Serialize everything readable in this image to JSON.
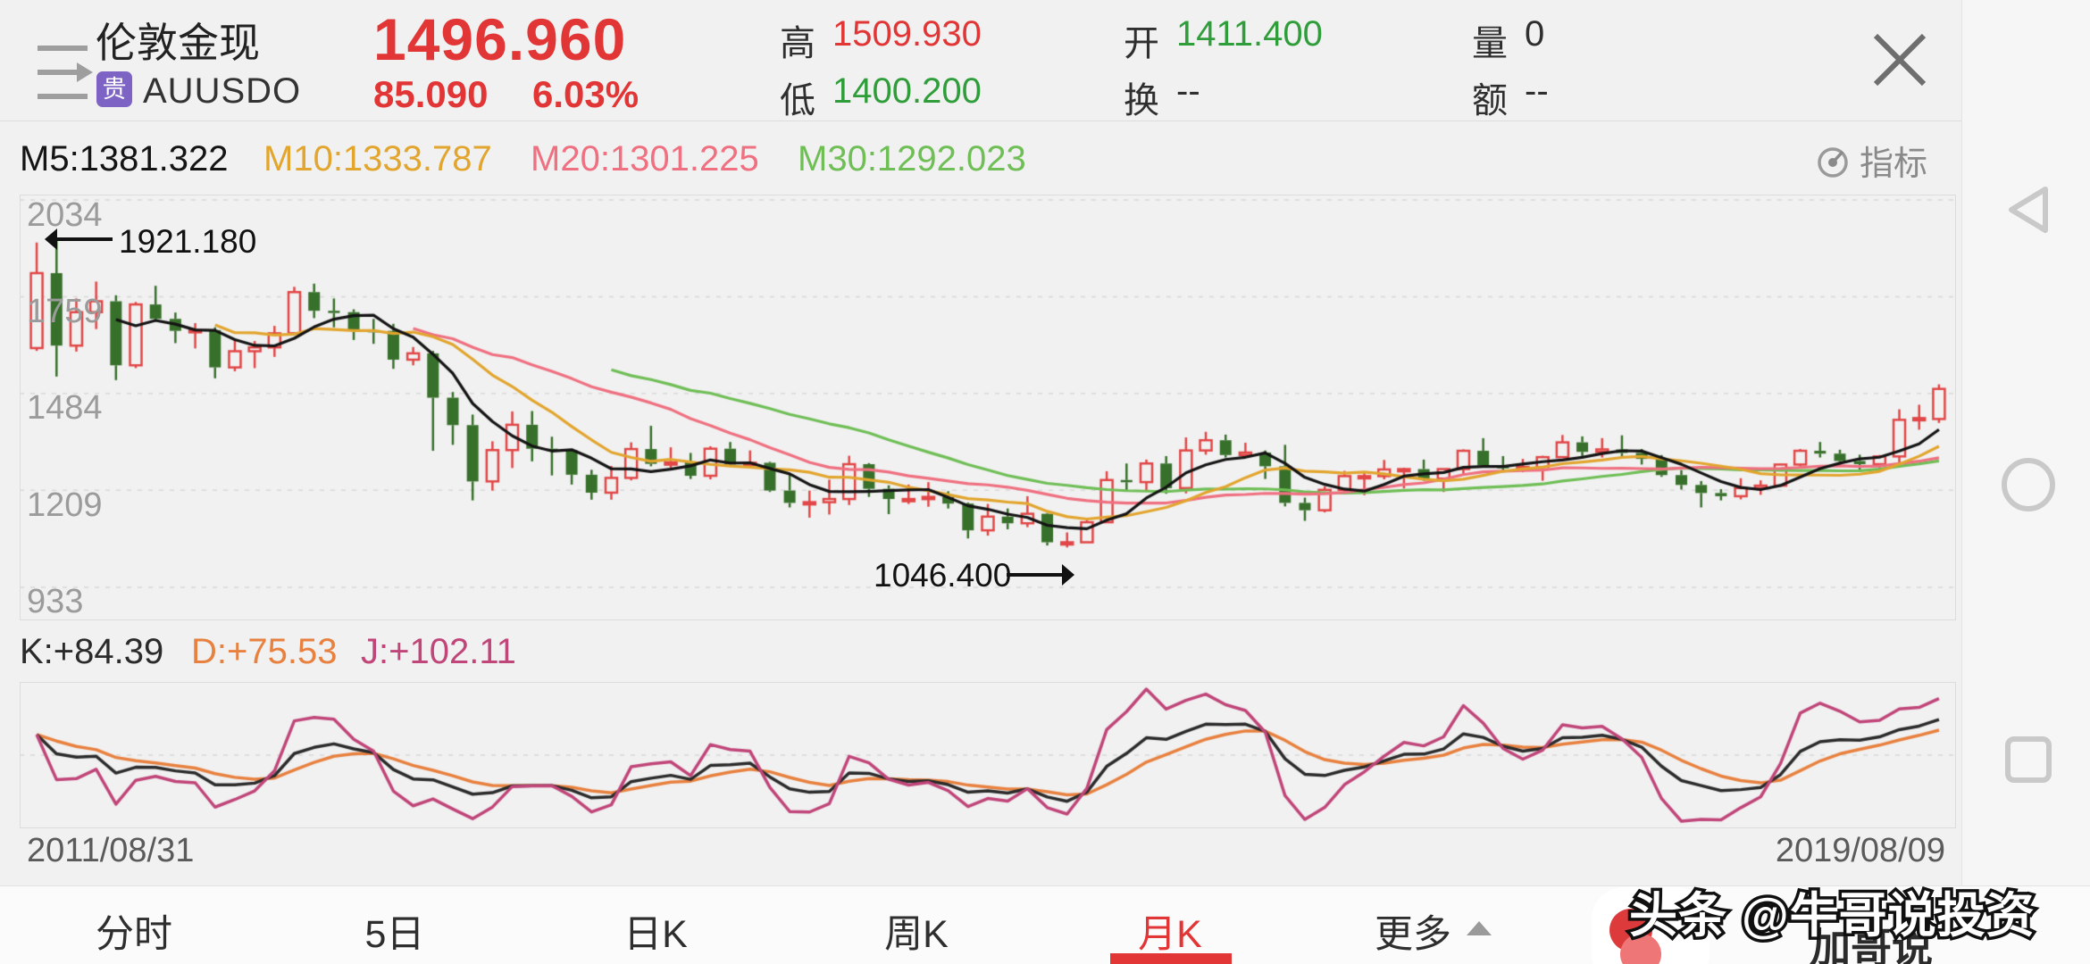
{
  "header": {
    "title": "伦敦金现",
    "market_badge": "贵",
    "symbol": "AUUSDO",
    "price": "1496.960",
    "change": "85.090",
    "change_pct": "6.03%",
    "stats": [
      {
        "label": "高",
        "value": "1509.930",
        "color": "red"
      },
      {
        "label": "低",
        "value": "1400.200",
        "color": "green"
      },
      {
        "label": "开",
        "value": "1411.400",
        "color": "green"
      },
      {
        "label": "换",
        "value": "--",
        "color": "dark"
      },
      {
        "label": "量",
        "value": "0",
        "color": "dark"
      },
      {
        "label": "额",
        "value": "--",
        "color": "dark"
      }
    ],
    "close_icon": "close"
  },
  "ma_bar": {
    "m5": "M5:1381.322",
    "m10": "M10:1333.787",
    "m20": "M20:1301.225",
    "m30": "M30:1292.023",
    "indicator_label": "指标"
  },
  "kdj_bar": {
    "k": "K:+84.39",
    "d": "D:+75.53",
    "j": "J:+102.11"
  },
  "tabs": [
    {
      "label": "分时",
      "active": false
    },
    {
      "label": "5日",
      "active": false
    },
    {
      "label": "日K",
      "active": false
    },
    {
      "label": "周K",
      "active": false
    },
    {
      "label": "月K",
      "active": true
    },
    {
      "label": "更多",
      "active": false
    }
  ],
  "watermark": {
    "text": "头条 @牛哥说投资",
    "partial_text": "加哥说"
  },
  "colors": {
    "up_red": "#e24646",
    "down_green": "#37702a",
    "price_red": "#e23535",
    "green_value": "#2f9e3a",
    "badge_purple": "#7d63c3",
    "ma5": "#141414",
    "ma10": "#e2a52e",
    "ma20": "#ef7080",
    "ma30": "#6fbe56",
    "kdj_k": "#2b2b2b",
    "kdj_d": "#e8813f",
    "kdj_j": "#c04579"
  },
  "chart_data": {
    "type": "candlestick",
    "title": "伦敦金现 AUUSDO 月K",
    "y_ticks": [
      2034,
      1759,
      1484,
      1209,
      933
    ],
    "y_range": [
      933,
      2034
    ],
    "x_start_label": "2011/08/31",
    "x_end_label": "2019/08/09",
    "start_month": "2011-08",
    "annotations": [
      {
        "text": "1921.180",
        "type": "high",
        "direction": "left"
      },
      {
        "text": "1046.400",
        "type": "low",
        "direction": "right"
      }
    ],
    "ma_overlays": [
      {
        "name": "M5",
        "period": 5,
        "color": "#141414",
        "last_value": 1381.322
      },
      {
        "name": "M10",
        "period": 10,
        "color": "#e2a52e",
        "last_value": 1333.787
      },
      {
        "name": "M20",
        "period": 20,
        "color": "#ef7080",
        "last_value": 1301.225
      },
      {
        "name": "M30",
        "period": 30,
        "color": "#6fbe56",
        "last_value": 1292.023
      }
    ],
    "sub_indicator": {
      "name": "KDJ",
      "period": 9,
      "k": 84.39,
      "d": 75.53,
      "j": 102.11
    },
    "ohlc": [
      [
        1613,
        1913,
        1605,
        1826
      ],
      [
        1826,
        1921.18,
        1532,
        1620
      ],
      [
        1620,
        1754,
        1603,
        1715
      ],
      [
        1715,
        1802,
        1667,
        1746
      ],
      [
        1746,
        1763,
        1522,
        1564
      ],
      [
        1564,
        1744,
        1556,
        1737
      ],
      [
        1737,
        1790,
        1688,
        1696
      ],
      [
        1696,
        1714,
        1627,
        1662
      ],
      [
        1662,
        1684,
        1612,
        1664
      ],
      [
        1664,
        1672,
        1527,
        1558
      ],
      [
        1558,
        1640,
        1547,
        1604
      ],
      [
        1604,
        1633,
        1556,
        1615
      ],
      [
        1615,
        1676,
        1588,
        1655
      ],
      [
        1655,
        1787,
        1651,
        1772
      ],
      [
        1772,
        1796,
        1698,
        1719
      ],
      [
        1719,
        1754,
        1672,
        1715
      ],
      [
        1715,
        1723,
        1636,
        1664
      ],
      [
        1664,
        1696,
        1625,
        1662
      ],
      [
        1662,
        1682,
        1554,
        1580
      ],
      [
        1580,
        1616,
        1564,
        1598
      ],
      [
        1598,
        1605,
        1321,
        1472
      ],
      [
        1472,
        1488,
        1338,
        1394
      ],
      [
        1394,
        1424,
        1180,
        1234
      ],
      [
        1234,
        1348,
        1208,
        1323
      ],
      [
        1323,
        1433,
        1272,
        1395
      ],
      [
        1395,
        1434,
        1291,
        1327
      ],
      [
        1327,
        1361,
        1251,
        1323
      ],
      [
        1323,
        1326,
        1225,
        1253
      ],
      [
        1253,
        1267,
        1182,
        1202
      ],
      [
        1202,
        1278,
        1182,
        1244
      ],
      [
        1244,
        1345,
        1237,
        1326
      ],
      [
        1326,
        1392,
        1277,
        1284
      ],
      [
        1284,
        1331,
        1268,
        1288
      ],
      [
        1288,
        1315,
        1241,
        1250
      ],
      [
        1250,
        1334,
        1240,
        1327
      ],
      [
        1327,
        1346,
        1281,
        1282
      ],
      [
        1282,
        1322,
        1273,
        1287
      ],
      [
        1287,
        1290,
        1204,
        1208
      ],
      [
        1208,
        1256,
        1160,
        1173
      ],
      [
        1173,
        1208,
        1131,
        1175
      ],
      [
        1175,
        1239,
        1140,
        1184
      ],
      [
        1184,
        1307,
        1167,
        1283
      ],
      [
        1283,
        1286,
        1190,
        1213
      ],
      [
        1213,
        1223,
        1141,
        1184
      ],
      [
        1184,
        1225,
        1170,
        1184
      ],
      [
        1184,
        1232,
        1162,
        1190
      ],
      [
        1190,
        1206,
        1157,
        1171
      ],
      [
        1171,
        1174,
        1072,
        1095
      ],
      [
        1095,
        1170,
        1080,
        1134
      ],
      [
        1134,
        1157,
        1098,
        1115
      ],
      [
        1115,
        1192,
        1104,
        1142
      ],
      [
        1142,
        1144,
        1052,
        1061
      ],
      [
        1061,
        1089,
        1046.4,
        1061
      ],
      [
        1061,
        1128,
        1061,
        1118
      ],
      [
        1118,
        1263,
        1117,
        1238
      ],
      [
        1238,
        1285,
        1208,
        1232
      ],
      [
        1232,
        1296,
        1208,
        1285
      ],
      [
        1285,
        1306,
        1199,
        1215
      ],
      [
        1215,
        1359,
        1200,
        1322
      ],
      [
        1322,
        1375,
        1310,
        1351
      ],
      [
        1351,
        1367,
        1302,
        1309
      ],
      [
        1309,
        1344,
        1302,
        1316
      ],
      [
        1316,
        1322,
        1241,
        1277
      ],
      [
        1277,
        1338,
        1163,
        1173
      ],
      [
        1173,
        1188,
        1122,
        1152
      ],
      [
        1152,
        1220,
        1146,
        1210
      ],
      [
        1210,
        1264,
        1205,
        1249
      ],
      [
        1249,
        1261,
        1195,
        1249
      ],
      [
        1249,
        1295,
        1240,
        1268
      ],
      [
        1268,
        1273,
        1214,
        1269
      ],
      [
        1269,
        1296,
        1236,
        1242
      ],
      [
        1242,
        1270,
        1204,
        1269
      ],
      [
        1269,
        1325,
        1251,
        1321
      ],
      [
        1321,
        1357,
        1278,
        1280
      ],
      [
        1280,
        1306,
        1261,
        1271
      ],
      [
        1271,
        1298,
        1260,
        1275
      ],
      [
        1275,
        1307,
        1236,
        1303
      ],
      [
        1303,
        1366,
        1302,
        1345
      ],
      [
        1345,
        1362,
        1302,
        1318
      ],
      [
        1318,
        1357,
        1302,
        1325
      ],
      [
        1325,
        1365,
        1301,
        1315
      ],
      [
        1315,
        1326,
        1282,
        1298
      ],
      [
        1298,
        1309,
        1247,
        1252
      ],
      [
        1252,
        1266,
        1211,
        1224
      ],
      [
        1224,
        1235,
        1160,
        1201
      ],
      [
        1201,
        1212,
        1180,
        1192
      ],
      [
        1192,
        1243,
        1183,
        1215
      ],
      [
        1215,
        1237,
        1196,
        1222
      ],
      [
        1222,
        1284,
        1221,
        1282
      ],
      [
        1282,
        1326,
        1276,
        1321
      ],
      [
        1321,
        1346,
        1302,
        1313
      ],
      [
        1313,
        1324,
        1280,
        1292
      ],
      [
        1292,
        1310,
        1266,
        1283
      ],
      [
        1283,
        1309,
        1265,
        1305
      ],
      [
        1305,
        1439,
        1274,
        1409
      ],
      [
        1409,
        1452,
        1381,
        1414
      ],
      [
        1411.4,
        1509.93,
        1400.2,
        1496.96
      ]
    ]
  }
}
